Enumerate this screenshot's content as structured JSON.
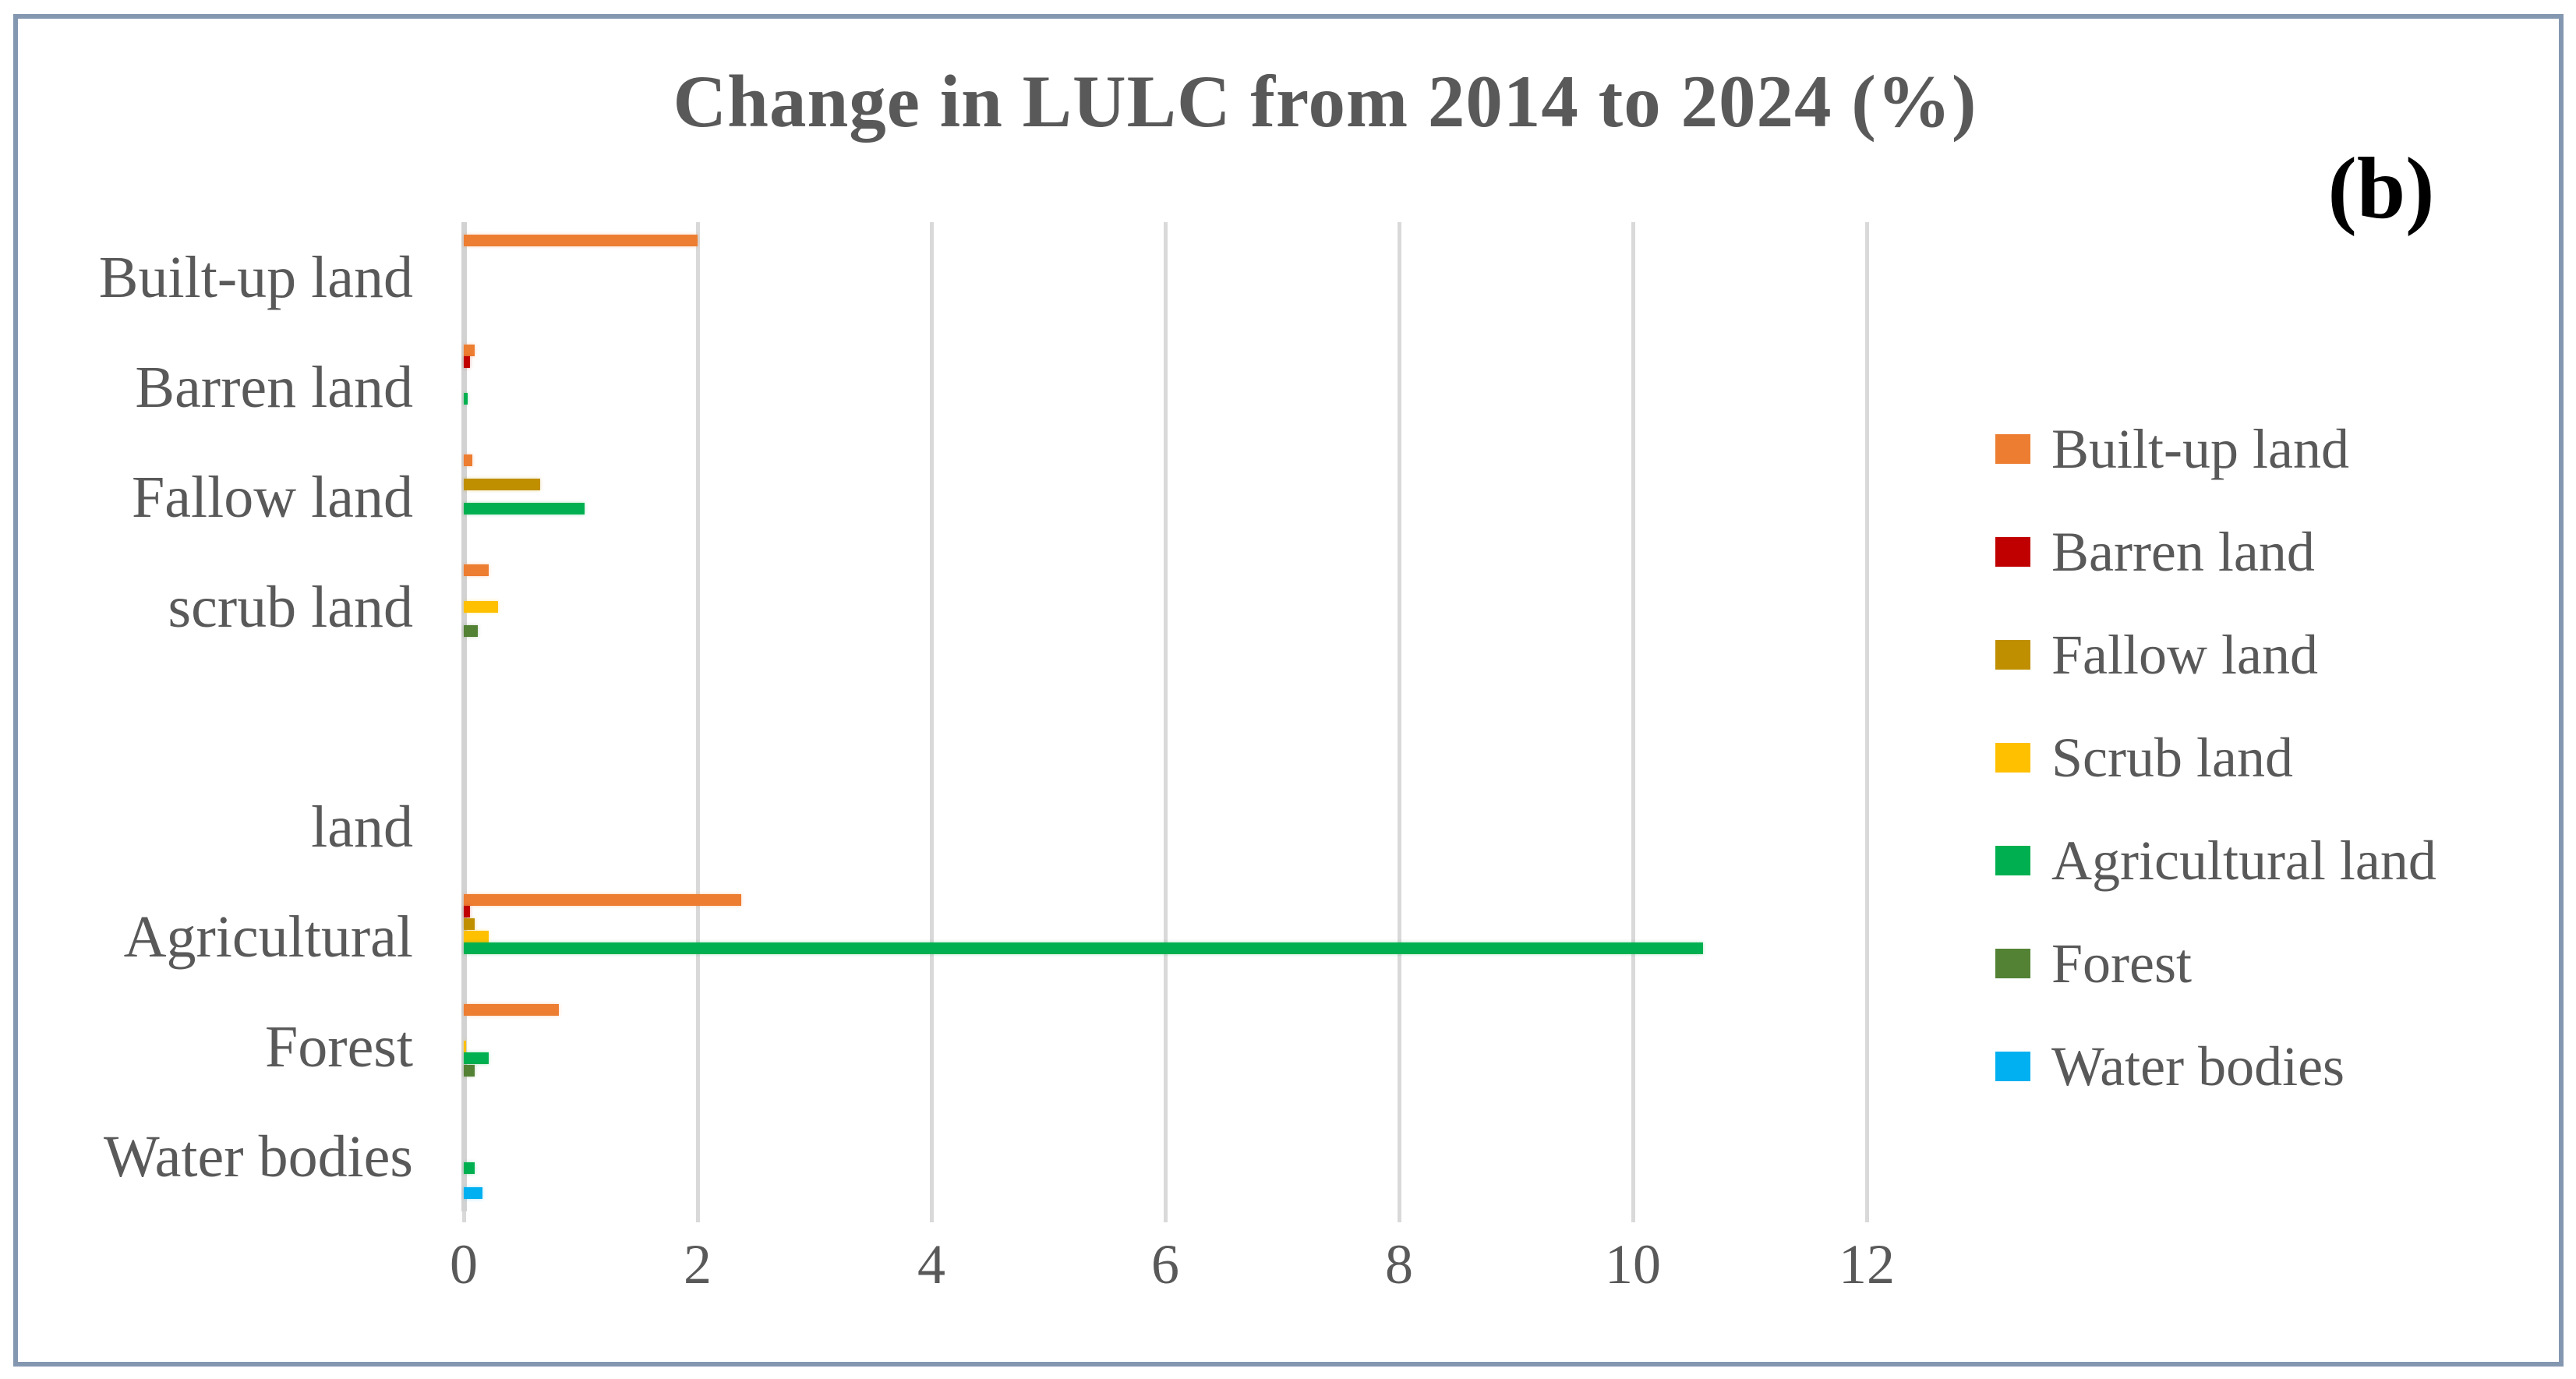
{
  "window": {
    "background": "#ffffff",
    "frame_border_color": "#8497B0"
  },
  "figure_label": "(b)",
  "title": "Change in LULC from 2014 to 2024 (%)",
  "colors": {
    "title_text": "#595959",
    "axis_text": "#595959",
    "gridline": "#D9D9D9",
    "axis_line": "#D2D2D2",
    "figure_label_text": "#000000"
  },
  "chart_data": {
    "type": "bar",
    "orientation": "horizontal",
    "title": "Change in LULC from 2014 to 2024 (%)",
    "xlabel": "",
    "ylabel": "",
    "xlim": [
      0,
      12
    ],
    "xticks": [
      0,
      2,
      4,
      6,
      8,
      10,
      12
    ],
    "grid": true,
    "legend_position": "right",
    "categories": [
      "Built-up land",
      "Barren land",
      "Fallow land",
      "scrub land",
      "",
      "land",
      "Agricultural",
      "Forest",
      "Water bodies"
    ],
    "series": [
      {
        "name": "Built-up land",
        "color": "#ED7D31",
        "values": [
          2.0,
          0.09,
          0.07,
          0.21,
          0,
          0,
          2.37,
          0.81,
          0
        ]
      },
      {
        "name": "Barren land",
        "color": "#C00000",
        "values": [
          0,
          0.05,
          0,
          0,
          0,
          0,
          0.05,
          0,
          0
        ]
      },
      {
        "name": "Fallow land",
        "color": "#BF8F00",
        "values": [
          0,
          0,
          0.65,
          0,
          0,
          0,
          0.09,
          0,
          0
        ]
      },
      {
        "name": "Scrub land",
        "color": "#FFC000",
        "values": [
          0,
          0,
          0,
          0.29,
          0,
          0,
          0.21,
          0.02,
          0
        ]
      },
      {
        "name": "Agricultural land",
        "color": "#00B050",
        "values": [
          0,
          0.03,
          1.03,
          0,
          0,
          0,
          10.6,
          0.21,
          0.09
        ]
      },
      {
        "name": "Forest",
        "color": "#548235",
        "values": [
          0,
          0,
          0,
          0.12,
          0,
          0,
          0,
          0.09,
          0
        ]
      },
      {
        "name": "Water bodies",
        "color": "#00B0F0",
        "values": [
          0,
          0,
          0,
          0,
          0,
          0,
          0,
          0,
          0.16
        ]
      }
    ]
  }
}
